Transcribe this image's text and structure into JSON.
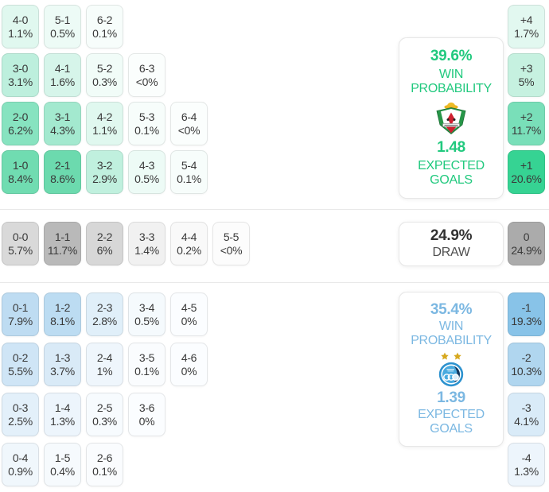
{
  "chart_data": {
    "type": "heatmap",
    "title": "Correct score probability matrix with win probabilities and expected goals",
    "home": {
      "summary": {
        "win_pct": "39.6%",
        "win_label": "WIN PROBABILITY",
        "expected_goals": "1.48",
        "goals_label": "EXPECTED GOALS",
        "crest_icon": "green-red-shield-crest-icon",
        "accent_color": "#21c97e"
      },
      "score_rows": [
        [
          {
            "score": "4-0",
            "pct": "1.1%",
            "bg": "#e0f8ef"
          },
          {
            "score": "5-1",
            "pct": "0.5%",
            "bg": "#edfbf6"
          },
          {
            "score": "6-2",
            "pct": "0.1%",
            "bg": "#f7fdfb"
          }
        ],
        [
          {
            "score": "3-0",
            "pct": "3.1%",
            "bg": "#bdefdd"
          },
          {
            "score": "4-1",
            "pct": "1.6%",
            "bg": "#d6f5ea"
          },
          {
            "score": "5-2",
            "pct": "0.3%",
            "bg": "#f1fcf8"
          },
          {
            "score": "6-3",
            "pct": "<0%",
            "bg": "#fbfefd"
          }
        ],
        [
          {
            "score": "2-0",
            "pct": "6.2%",
            "bg": "#87e3c0"
          },
          {
            "score": "3-1",
            "pct": "4.3%",
            "bg": "#a3e9cf"
          },
          {
            "score": "4-2",
            "pct": "1.1%",
            "bg": "#e0f8ef"
          },
          {
            "score": "5-3",
            "pct": "0.1%",
            "bg": "#f7fdfb"
          },
          {
            "score": "6-4",
            "pct": "<0%",
            "bg": "#fbfefd"
          }
        ],
        [
          {
            "score": "1-0",
            "pct": "8.4%",
            "bg": "#70dcb1"
          },
          {
            "score": "2-1",
            "pct": "8.6%",
            "bg": "#6cdaae"
          },
          {
            "score": "3-2",
            "pct": "2.9%",
            "bg": "#c0f0de"
          },
          {
            "score": "4-3",
            "pct": "0.5%",
            "bg": "#edfbf6"
          },
          {
            "score": "5-4",
            "pct": "0.1%",
            "bg": "#f7fdfb"
          }
        ]
      ],
      "margins": [
        {
          "label": "+4",
          "pct": "1.7%",
          "bg": "#e2f8f0"
        },
        {
          "label": "+3",
          "pct": "5%",
          "bg": "#c6f1e0"
        },
        {
          "label": "+2",
          "pct": "11.7%",
          "bg": "#79dfb9"
        },
        {
          "label": "+1",
          "pct": "20.6%",
          "bg": "#36d393"
        }
      ]
    },
    "draw": {
      "summary": {
        "pct": "24.9%",
        "label": "DRAW"
      },
      "score_row": [
        {
          "score": "0-0",
          "pct": "5.7%",
          "bg": "#d9d9d9"
        },
        {
          "score": "1-1",
          "pct": "11.7%",
          "bg": "#b9b9b9"
        },
        {
          "score": "2-2",
          "pct": "6%",
          "bg": "#d7d7d7"
        },
        {
          "score": "3-3",
          "pct": "1.4%",
          "bg": "#f1f1f1"
        },
        {
          "score": "4-4",
          "pct": "0.2%",
          "bg": "#f9f9f9"
        },
        {
          "score": "5-5",
          "pct": "<0%",
          "bg": "#fcfcfc"
        }
      ],
      "margin": {
        "label": "0",
        "pct": "24.9%",
        "bg": "#ababab"
      }
    },
    "away": {
      "summary": {
        "win_pct": "35.4%",
        "win_label": "WIN PROBABILITY",
        "expected_goals": "1.39",
        "goals_label": "EXPECTED GOALS",
        "crest_icon": "blue-round-two-stars-crest-icon",
        "accent_color": "#7cb8e2"
      },
      "score_rows": [
        [
          {
            "score": "0-1",
            "pct": "7.9%",
            "bg": "#bedcf2"
          },
          {
            "score": "1-2",
            "pct": "8.1%",
            "bg": "#bcdcf2"
          },
          {
            "score": "2-3",
            "pct": "2.8%",
            "bg": "#e0eff9"
          },
          {
            "score": "3-4",
            "pct": "0.5%",
            "bg": "#f5fafd"
          },
          {
            "score": "4-5",
            "pct": "0%",
            "bg": "#fbfdff"
          }
        ],
        [
          {
            "score": "0-2",
            "pct": "5.5%",
            "bg": "#cfe5f6"
          },
          {
            "score": "1-3",
            "pct": "3.7%",
            "bg": "#d9eaf7"
          },
          {
            "score": "2-4",
            "pct": "1%",
            "bg": "#eff6fc"
          },
          {
            "score": "3-5",
            "pct": "0.1%",
            "bg": "#fafcfe"
          },
          {
            "score": "4-6",
            "pct": "0%",
            "bg": "#fbfdff"
          }
        ],
        [
          {
            "score": "0-3",
            "pct": "2.5%",
            "bg": "#e3f0fa"
          },
          {
            "score": "1-4",
            "pct": "1.3%",
            "bg": "#edf5fc"
          },
          {
            "score": "2-5",
            "pct": "0.3%",
            "bg": "#f7fbfe"
          },
          {
            "score": "3-6",
            "pct": "0%",
            "bg": "#fbfdff"
          }
        ],
        [
          {
            "score": "0-4",
            "pct": "0.9%",
            "bg": "#f0f7fc"
          },
          {
            "score": "1-5",
            "pct": "0.4%",
            "bg": "#f6fafd"
          },
          {
            "score": "2-6",
            "pct": "0.1%",
            "bg": "#fafcfe"
          }
        ]
      ],
      "margins": [
        {
          "label": "-1",
          "pct": "19.3%",
          "bg": "#88c3e8"
        },
        {
          "label": "-2",
          "pct": "10.3%",
          "bg": "#b0d6ef"
        },
        {
          "label": "-3",
          "pct": "4.1%",
          "bg": "#d9ebf8"
        },
        {
          "label": "-4",
          "pct": "1.3%",
          "bg": "#edf5fc"
        }
      ]
    }
  }
}
